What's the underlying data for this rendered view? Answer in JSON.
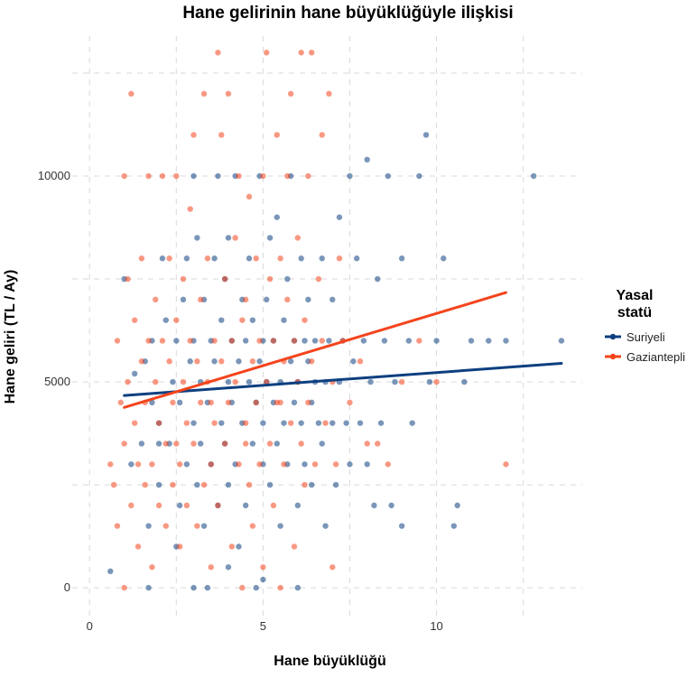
{
  "chart_data": {
    "type": "scatter",
    "title": "Hane gelirinin hane büyüklüğüyle ilişkisi",
    "xlabel": "Hane büyüklüğü",
    "ylabel": "Hane geliri (TL / Ay)",
    "xlim": [
      -0.5,
      14.2
    ],
    "ylim": [
      -700,
      13400
    ],
    "x_ticks": [
      0,
      5,
      10
    ],
    "y_ticks": [
      0,
      5000,
      10000
    ],
    "grid": true,
    "legend_title": "Yasal\nstatü",
    "legend_position": "right",
    "series": [
      {
        "name": "Suriyeli",
        "color": "#0d3f80",
        "points": [
          [
            0.6,
            400
          ],
          [
            1.2,
            3000
          ],
          [
            1.0,
            7500
          ],
          [
            1.3,
            5200
          ],
          [
            1.5,
            3500
          ],
          [
            1.6,
            5500
          ],
          [
            1.7,
            0
          ],
          [
            1.7,
            1500
          ],
          [
            1.8,
            4500
          ],
          [
            1.8,
            6000
          ],
          [
            2.0,
            2500
          ],
          [
            2.0,
            4000
          ],
          [
            2.1,
            8000
          ],
          [
            2.2,
            6500
          ],
          [
            2.3,
            3500
          ],
          [
            2.4,
            5000
          ],
          [
            2.5,
            1000
          ],
          [
            2.5,
            6000
          ],
          [
            2.6,
            4500
          ],
          [
            2.6,
            2000
          ],
          [
            2.7,
            7000
          ],
          [
            2.8,
            8000
          ],
          [
            2.8,
            3000
          ],
          [
            2.9,
            5500
          ],
          [
            3.0,
            4000
          ],
          [
            3.0,
            6000
          ],
          [
            3.0,
            10000
          ],
          [
            3.1,
            2500
          ],
          [
            3.1,
            8500
          ],
          [
            3.2,
            3500
          ],
          [
            3.2,
            5000
          ],
          [
            3.3,
            1500
          ],
          [
            3.3,
            7000
          ],
          [
            3.4,
            4500
          ],
          [
            3.4,
            0
          ],
          [
            3.5,
            6000
          ],
          [
            3.5,
            3000
          ],
          [
            3.6,
            8000
          ],
          [
            3.6,
            5500
          ],
          [
            3.7,
            2000
          ],
          [
            3.7,
            10000
          ],
          [
            3.8,
            4000
          ],
          [
            3.8,
            6500
          ],
          [
            3.9,
            7500
          ],
          [
            3.9,
            3500
          ],
          [
            4.0,
            5000
          ],
          [
            4.0,
            8500
          ],
          [
            4.0,
            2500
          ],
          [
            4.1,
            6000
          ],
          [
            4.1,
            4500
          ],
          [
            4.2,
            3000
          ],
          [
            4.2,
            10000
          ],
          [
            4.3,
            5500
          ],
          [
            4.3,
            1000
          ],
          [
            4.4,
            7000
          ],
          [
            4.4,
            4000
          ],
          [
            4.5,
            6000
          ],
          [
            4.5,
            2000
          ],
          [
            4.6,
            5000
          ],
          [
            4.6,
            8000
          ],
          [
            4.7,
            3500
          ],
          [
            4.7,
            6500
          ],
          [
            4.8,
            4500
          ],
          [
            4.8,
            0
          ],
          [
            4.9,
            5500
          ],
          [
            4.9,
            10000
          ],
          [
            5.0,
            4000
          ],
          [
            5.0,
            6000
          ],
          [
            5.0,
            3000
          ],
          [
            5.1,
            7000
          ],
          [
            5.1,
            5000
          ],
          [
            5.2,
            2500
          ],
          [
            5.2,
            8500
          ],
          [
            5.3,
            4500
          ],
          [
            5.3,
            6000
          ],
          [
            5.4,
            3500
          ],
          [
            5.4,
            9000
          ],
          [
            5.5,
            5000
          ],
          [
            5.5,
            1500
          ],
          [
            5.6,
            6500
          ],
          [
            5.6,
            4000
          ],
          [
            5.7,
            7500
          ],
          [
            5.7,
            3000
          ],
          [
            5.8,
            5500
          ],
          [
            5.8,
            10000
          ],
          [
            5.9,
            4500
          ],
          [
            5.9,
            6000
          ],
          [
            6.0,
            2000
          ],
          [
            6.0,
            5000
          ],
          [
            6.1,
            8000
          ],
          [
            6.1,
            4000
          ],
          [
            6.2,
            6000
          ],
          [
            6.2,
            3000
          ],
          [
            6.3,
            5500
          ],
          [
            6.3,
            7000
          ],
          [
            6.4,
            4500
          ],
          [
            6.4,
            2500
          ],
          [
            6.5,
            6000
          ],
          [
            6.5,
            5000
          ],
          [
            6.6,
            4000
          ],
          [
            6.7,
            3500
          ],
          [
            6.7,
            8000
          ],
          [
            6.8,
            5000
          ],
          [
            6.8,
            1500
          ],
          [
            6.9,
            6000
          ],
          [
            7.0,
            4000
          ],
          [
            7.0,
            7000
          ],
          [
            7.1,
            2500
          ],
          [
            7.2,
            5000
          ],
          [
            7.2,
            9000
          ],
          [
            7.3,
            6000
          ],
          [
            7.4,
            4000
          ],
          [
            7.5,
            3000
          ],
          [
            7.6,
            5500
          ],
          [
            7.7,
            8000
          ],
          [
            7.8,
            4000
          ],
          [
            7.9,
            6000
          ],
          [
            8.0,
            10400
          ],
          [
            8.0,
            3000
          ],
          [
            8.1,
            5000
          ],
          [
            8.2,
            2000
          ],
          [
            8.3,
            7500
          ],
          [
            8.4,
            4000
          ],
          [
            8.5,
            6000
          ],
          [
            8.6,
            10000
          ],
          [
            8.7,
            2000
          ],
          [
            8.8,
            5000
          ],
          [
            9.0,
            1500
          ],
          [
            9.0,
            8000
          ],
          [
            9.2,
            6000
          ],
          [
            9.3,
            4000
          ],
          [
            9.5,
            10000
          ],
          [
            9.7,
            11000
          ],
          [
            9.8,
            5000
          ],
          [
            10.0,
            6000
          ],
          [
            10.2,
            8000
          ],
          [
            10.5,
            1500
          ],
          [
            10.6,
            2000
          ],
          [
            10.8,
            5000
          ],
          [
            11.0,
            6000
          ],
          [
            12.0,
            6000
          ],
          [
            12.8,
            10000
          ],
          [
            13.6,
            6000
          ],
          [
            11.5,
            6000
          ],
          [
            7.5,
            10000
          ],
          [
            6.0,
            0
          ],
          [
            5.0,
            200
          ],
          [
            4.0,
            500
          ],
          [
            3.0,
            0
          ],
          [
            2.0,
            3500
          ]
        ],
        "trend": [
          [
            1.0,
            4670
          ],
          [
            13.6,
            5450
          ]
        ]
      },
      {
        "name": "Gaziantepli",
        "color": "#f4441c",
        "points": [
          [
            0.6,
            3000
          ],
          [
            0.7,
            2500
          ],
          [
            0.8,
            6000
          ],
          [
            0.8,
            1500
          ],
          [
            0.9,
            4500
          ],
          [
            1.0,
            0
          ],
          [
            1.0,
            3500
          ],
          [
            1.0,
            10000
          ],
          [
            1.1,
            5000
          ],
          [
            1.1,
            7500
          ],
          [
            1.2,
            2000
          ],
          [
            1.2,
            12000
          ],
          [
            1.3,
            4000
          ],
          [
            1.3,
            6500
          ],
          [
            1.4,
            1000
          ],
          [
            1.4,
            3000
          ],
          [
            1.5,
            5500
          ],
          [
            1.5,
            8000
          ],
          [
            1.6,
            2500
          ],
          [
            1.6,
            4500
          ],
          [
            1.7,
            6000
          ],
          [
            1.7,
            10000
          ],
          [
            1.8,
            3000
          ],
          [
            1.8,
            500
          ],
          [
            1.9,
            5000
          ],
          [
            1.9,
            7000
          ],
          [
            2.0,
            2000
          ],
          [
            2.0,
            4000
          ],
          [
            2.1,
            6000
          ],
          [
            2.1,
            10000
          ],
          [
            2.2,
            3500
          ],
          [
            2.2,
            1500
          ],
          [
            2.3,
            5500
          ],
          [
            2.3,
            8000
          ],
          [
            2.4,
            2500
          ],
          [
            2.4,
            4500
          ],
          [
            2.5,
            6500
          ],
          [
            2.5,
            10000
          ],
          [
            2.6,
            3000
          ],
          [
            2.6,
            1000
          ],
          [
            2.7,
            5000
          ],
          [
            2.7,
            7500
          ],
          [
            2.8,
            2000
          ],
          [
            2.8,
            4000
          ],
          [
            2.9,
            6000
          ],
          [
            2.9,
            9200
          ],
          [
            3.0,
            3500
          ],
          [
            3.0,
            11000
          ],
          [
            3.1,
            5500
          ],
          [
            3.1,
            1500
          ],
          [
            3.2,
            4500
          ],
          [
            3.2,
            7000
          ],
          [
            3.3,
            2500
          ],
          [
            3.3,
            12000
          ],
          [
            3.4,
            5000
          ],
          [
            3.4,
            8000
          ],
          [
            3.5,
            3000
          ],
          [
            3.5,
            500
          ],
          [
            3.6,
            6000
          ],
          [
            3.6,
            4000
          ],
          [
            3.7,
            13000
          ],
          [
            3.7,
            2000
          ],
          [
            3.8,
            5500
          ],
          [
            3.8,
            11000
          ],
          [
            3.9,
            3500
          ],
          [
            3.9,
            7500
          ],
          [
            4.0,
            4500
          ],
          [
            4.0,
            12000
          ],
          [
            4.1,
            6000
          ],
          [
            4.1,
            1000
          ],
          [
            4.2,
            5000
          ],
          [
            4.2,
            8500
          ],
          [
            4.3,
            3000
          ],
          [
            4.3,
            10000
          ],
          [
            4.4,
            6500
          ],
          [
            4.4,
            0
          ],
          [
            4.5,
            4000
          ],
          [
            4.5,
            7000
          ],
          [
            4.6,
            2500
          ],
          [
            4.6,
            9500
          ],
          [
            4.7,
            5500
          ],
          [
            4.7,
            1500
          ],
          [
            4.8,
            4500
          ],
          [
            4.8,
            8000
          ],
          [
            4.9,
            3000
          ],
          [
            4.9,
            6000
          ],
          [
            5.0,
            10000
          ],
          [
            5.0,
            500
          ],
          [
            5.1,
            5000
          ],
          [
            5.1,
            13000
          ],
          [
            5.2,
            3500
          ],
          [
            5.2,
            7500
          ],
          [
            5.3,
            6000
          ],
          [
            5.3,
            2000
          ],
          [
            5.4,
            4500
          ],
          [
            5.4,
            11000
          ],
          [
            5.5,
            8000
          ],
          [
            5.5,
            0
          ],
          [
            5.6,
            5500
          ],
          [
            5.6,
            3000
          ],
          [
            5.7,
            7000
          ],
          [
            5.7,
            10000
          ],
          [
            5.8,
            4000
          ],
          [
            5.8,
            12000
          ],
          [
            5.9,
            6000
          ],
          [
            5.9,
            1000
          ],
          [
            6.0,
            5000
          ],
          [
            6.0,
            8500
          ],
          [
            6.1,
            3500
          ],
          [
            6.1,
            13000
          ],
          [
            6.2,
            6500
          ],
          [
            6.2,
            2500
          ],
          [
            6.3,
            4500
          ],
          [
            6.3,
            10000
          ],
          [
            6.4,
            5500
          ],
          [
            6.4,
            13000
          ],
          [
            6.5,
            3000
          ],
          [
            6.6,
            7500
          ],
          [
            6.7,
            6000
          ],
          [
            6.7,
            11000
          ],
          [
            6.8,
            4000
          ],
          [
            6.9,
            12000
          ],
          [
            7.0,
            5000
          ],
          [
            7.0,
            500
          ],
          [
            7.1,
            3000
          ],
          [
            7.2,
            8000
          ],
          [
            7.3,
            6000
          ],
          [
            7.5,
            4500
          ],
          [
            7.8,
            5500
          ],
          [
            8.0,
            3500
          ],
          [
            8.3,
            3500
          ],
          [
            8.6,
            3000
          ],
          [
            9.0,
            5000
          ],
          [
            9.5,
            6000
          ],
          [
            10.0,
            5000
          ],
          [
            12.0,
            3000
          ],
          [
            2.5,
            3500
          ],
          [
            3.5,
            4500
          ],
          [
            4.5,
            3500
          ],
          [
            5.5,
            4500
          ]
        ],
        "trend": [
          [
            1.0,
            4380
          ],
          [
            12.0,
            7170
          ]
        ]
      }
    ]
  }
}
